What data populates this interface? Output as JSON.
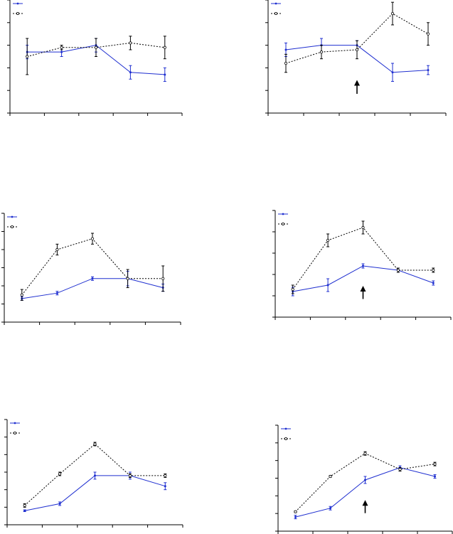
{
  "figure": {
    "panel_count": 6
  },
  "colors": {
    "series_a": "#1f2fd0",
    "series_b": "#000000",
    "axis": "#000000",
    "arrow": "#000000"
  },
  "chart_data": [
    {
      "type": "line",
      "x": [
        1,
        2,
        3,
        4,
        5
      ],
      "xlim": [
        0.5,
        5.5
      ],
      "ylim": [
        0,
        5
      ],
      "grid": false,
      "legend": "top-left",
      "arrow_at_x": null,
      "series": [
        {
          "values": [
            2.7,
            2.7,
            3.0,
            1.8,
            1.7
          ],
          "errors": [
            0.3,
            0.2,
            0.3,
            0.3,
            0.3
          ],
          "style": "solid",
          "color": "#1f2fd0"
        },
        {
          "values": [
            2.5,
            2.9,
            2.9,
            3.1,
            2.9
          ],
          "errors": [
            0.8,
            0.1,
            0.4,
            0.3,
            0.5
          ],
          "style": "dotted",
          "color": "#000000"
        }
      ]
    },
    {
      "type": "line",
      "x": [
        1,
        2,
        3,
        4,
        5
      ],
      "xlim": [
        0.5,
        5.5
      ],
      "ylim": [
        0,
        5
      ],
      "grid": false,
      "legend": "top-left",
      "arrow_at_x": 3,
      "series": [
        {
          "values": [
            2.8,
            3.0,
            3.0,
            1.8,
            1.9
          ],
          "errors": [
            0.3,
            0.3,
            0.2,
            0.4,
            0.2
          ],
          "style": "solid",
          "color": "#1f2fd0"
        },
        {
          "values": [
            2.2,
            2.7,
            2.8,
            4.4,
            3.5
          ],
          "errors": [
            0.4,
            0.3,
            0.4,
            0.5,
            0.5
          ],
          "style": "dotted",
          "color": "#000000"
        }
      ]
    },
    {
      "type": "line",
      "x": [
        1,
        2,
        3,
        4,
        5
      ],
      "xlim": [
        0.5,
        5.5
      ],
      "ylim": [
        0,
        6
      ],
      "grid": false,
      "legend": "top-left",
      "arrow_at_x": null,
      "series": [
        {
          "values": [
            1.3,
            1.6,
            2.4,
            2.4,
            1.9
          ],
          "errors": [
            0.1,
            0.1,
            0.1,
            0.4,
            0.2
          ],
          "style": "solid",
          "color": "#1f2fd0"
        },
        {
          "values": [
            1.5,
            4.0,
            4.6,
            2.4,
            2.4
          ],
          "errors": [
            0.3,
            0.3,
            0.3,
            0.5,
            0.7
          ],
          "style": "dotted",
          "color": "#000000"
        }
      ]
    },
    {
      "type": "line",
      "x": [
        1,
        2,
        3,
        4,
        5
      ],
      "xlim": [
        0.5,
        5.5
      ],
      "ylim": [
        0,
        5
      ],
      "grid": false,
      "legend": "top-left",
      "arrow_at_x": 3,
      "series": [
        {
          "values": [
            1.2,
            1.5,
            2.4,
            2.2,
            1.6
          ],
          "errors": [
            0.2,
            0.3,
            0.1,
            0.1,
            0.1
          ],
          "style": "solid",
          "color": "#1f2fd0"
        },
        {
          "values": [
            1.3,
            3.6,
            4.2,
            2.2,
            2.2
          ],
          "errors": [
            0.2,
            0.3,
            0.3,
            0.1,
            0.1
          ],
          "style": "dotted",
          "color": "#000000"
        }
      ]
    },
    {
      "type": "line",
      "x": [
        1,
        2,
        3,
        4,
        5
      ],
      "xlim": [
        0.5,
        5.5
      ],
      "ylim": [
        0,
        6
      ],
      "grid": false,
      "legend": "top-left",
      "arrow_at_x": null,
      "series": [
        {
          "values": [
            0.8,
            1.2,
            2.8,
            2.8,
            2.2
          ],
          "errors": [
            0.05,
            0.1,
            0.2,
            0.2,
            0.2
          ],
          "style": "solid",
          "color": "#1f2fd0"
        },
        {
          "values": [
            1.1,
            2.9,
            4.6,
            2.8,
            2.8
          ],
          "errors": [
            0.1,
            0.1,
            0.1,
            0.1,
            0.1
          ],
          "style": "dotted",
          "color": "#000000"
        }
      ]
    },
    {
      "type": "line",
      "x": [
        1,
        2,
        3,
        4,
        5
      ],
      "xlim": [
        0.5,
        5.5
      ],
      "ylim": [
        0,
        6
      ],
      "grid": false,
      "legend": "top-left",
      "arrow_at_x": 3,
      "series": [
        {
          "values": [
            0.8,
            1.3,
            2.9,
            3.6,
            3.1
          ],
          "errors": [
            0.1,
            0.1,
            0.2,
            0.1,
            0.1
          ],
          "style": "solid",
          "color": "#1f2fd0"
        },
        {
          "values": [
            1.1,
            3.1,
            4.4,
            3.5,
            3.8
          ],
          "errors": [
            0.05,
            0.05,
            0.1,
            0.1,
            0.1
          ],
          "style": "dotted",
          "color": "#000000"
        }
      ]
    }
  ]
}
